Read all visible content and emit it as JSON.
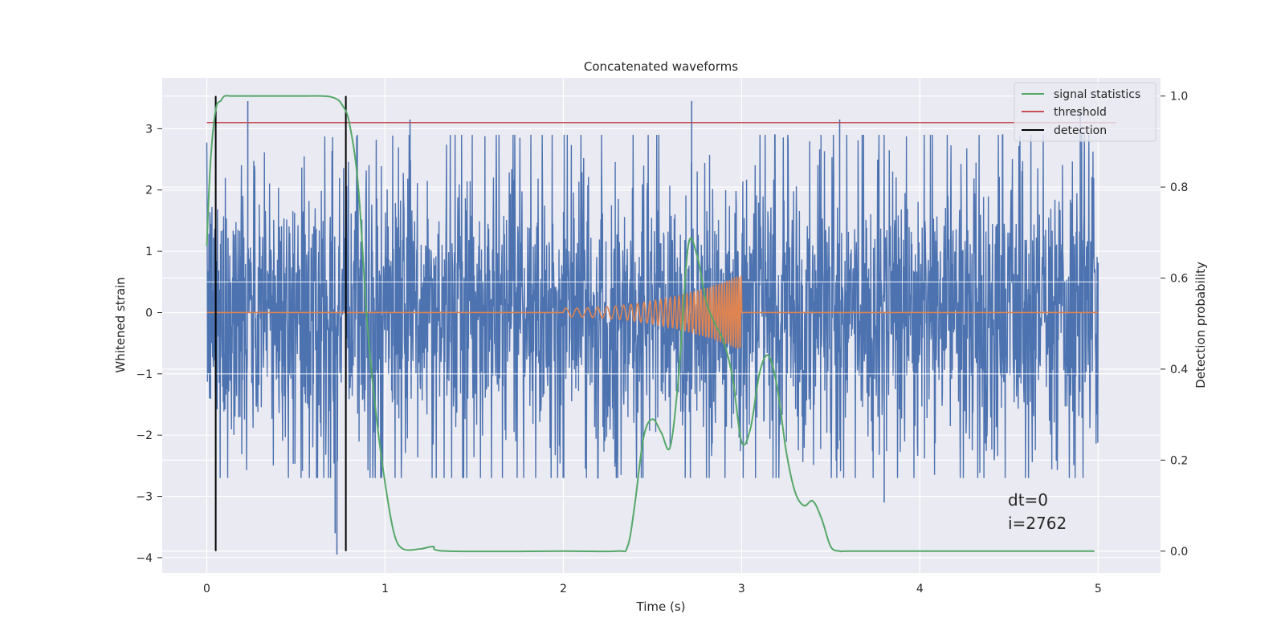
{
  "chart_data": {
    "type": "line",
    "title": "Concatenated waveforms",
    "xlabel": "Time (s)",
    "ylabel": "Whitened strain",
    "y2label": "Detection probability",
    "xlim": [
      -0.25,
      5.35
    ],
    "ylim": [
      -4.25,
      3.83
    ],
    "y2lim": [
      -0.048,
      1.04
    ],
    "xticks": [
      0,
      1,
      2,
      3,
      4,
      5
    ],
    "yticks": [
      -4,
      -3,
      -2,
      -1,
      0,
      1,
      2,
      3
    ],
    "y2ticks": [
      0.0,
      0.2,
      0.4,
      0.6,
      0.8,
      1.0
    ],
    "grid": true,
    "legend_position": "top-right",
    "legend": [
      {
        "label": "signal statistics",
        "color": "#55a868"
      },
      {
        "label": "threshold",
        "color": "#c44e52"
      },
      {
        "label": "detection",
        "color": "#000000"
      }
    ],
    "colors": {
      "noise": "#4c72b0",
      "injection": "#dd8452",
      "background": "#eaeaf2",
      "grid": "#ffffff"
    },
    "series": [
      {
        "name": "signal statistics",
        "axis": "right",
        "x": [
          0.0,
          0.02,
          0.05,
          0.08,
          0.1,
          0.15,
          0.3,
          0.5,
          0.65,
          0.72,
          0.76,
          0.8,
          0.85,
          0.9,
          0.95,
          1.0,
          1.05,
          1.1,
          1.2,
          1.27,
          1.35,
          2.0,
          2.3,
          2.36,
          2.4,
          2.45,
          2.5,
          2.55,
          2.6,
          2.65,
          2.7,
          2.75,
          2.8,
          2.85,
          2.9,
          2.95,
          3.0,
          3.05,
          3.1,
          3.15,
          3.2,
          3.25,
          3.3,
          3.35,
          3.4,
          3.45,
          3.5,
          3.55,
          3.6,
          4.0,
          4.98
        ],
        "values": [
          0.67,
          0.85,
          0.97,
          0.99,
          1.0,
          1.0,
          1.0,
          1.0,
          1.0,
          0.995,
          0.98,
          0.94,
          0.8,
          0.5,
          0.3,
          0.15,
          0.04,
          0.005,
          0.005,
          0.01,
          0.0,
          0.0,
          0.0,
          0.01,
          0.1,
          0.25,
          0.29,
          0.26,
          0.23,
          0.4,
          0.67,
          0.65,
          0.55,
          0.5,
          0.46,
          0.38,
          0.24,
          0.27,
          0.39,
          0.43,
          0.36,
          0.22,
          0.13,
          0.1,
          0.11,
          0.07,
          0.01,
          0.0,
          0.0,
          0.0,
          0.0
        ]
      },
      {
        "name": "threshold",
        "axis": "left",
        "x": [
          0.0,
          5.1
        ],
        "values": [
          3.1,
          3.1
        ]
      },
      {
        "name": "detection",
        "axis": "right",
        "type": "vline",
        "x": [
          0.05,
          0.78
        ],
        "range": [
          0.0,
          1.0
        ]
      },
      {
        "name": "",
        "axis": "left",
        "type": "noise",
        "x_range": [
          0,
          5
        ],
        "amplitude_core": 1.0,
        "typical_peaks": [
          -2.7,
          2.9
        ],
        "extreme_peaks": [
          -3.95,
          3.45
        ]
      },
      {
        "name": "",
        "axis": "left",
        "type": "chirp",
        "x_range": [
          0,
          5
        ],
        "chirp_start": 2.0,
        "chirp_end": 3.0,
        "amplitude_start": 0.07,
        "amplitude_end": 0.62,
        "freq_start": 16,
        "freq_end": 80
      }
    ],
    "annotations": [
      "dt=0",
      "i=2762"
    ]
  }
}
